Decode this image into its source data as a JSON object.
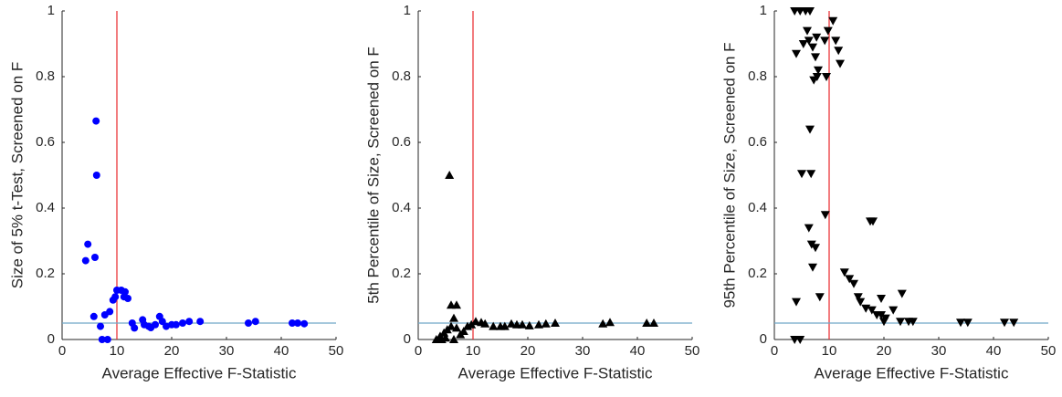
{
  "chart_data": [
    {
      "type": "scatter",
      "marker": "circle",
      "color": "#0000ff",
      "xlabel": "Average Effective F-Statistic",
      "ylabel": "Size of 5% t-Test, Screened on F",
      "xlim": [
        0,
        50
      ],
      "ylim": [
        0,
        1
      ],
      "xticks": [
        0,
        10,
        20,
        30,
        40,
        50
      ],
      "yticks": [
        0,
        0.2,
        0.4,
        0.6,
        0.8,
        1
      ],
      "reference_lines": [
        {
          "axis": "x",
          "value": 10,
          "color": "#e8262a"
        },
        {
          "axis": "y",
          "value": 0.05,
          "color": "#6fa8c8"
        }
      ],
      "x": [
        6.2,
        6.3,
        4.7,
        4.3,
        6,
        5.8,
        7,
        7.3,
        8.3,
        7.8,
        8.7,
        9.3,
        9.7,
        10,
        10.8,
        11.5,
        12,
        11.3,
        12.8,
        13.2,
        14.7,
        15,
        15.8,
        16.2,
        17,
        17.8,
        18.3,
        19,
        20,
        20.8,
        22,
        23.2,
        25.2,
        34,
        35.3,
        42,
        43,
        44.2
      ],
      "values": [
        0.665,
        0.5,
        0.29,
        0.24,
        0.25,
        0.07,
        0.04,
        0,
        0,
        0.075,
        0.085,
        0.12,
        0.13,
        0.15,
        0.15,
        0.145,
        0.125,
        0.13,
        0.05,
        0.035,
        0.06,
        0.045,
        0.04,
        0.036,
        0.045,
        0.07,
        0.055,
        0.04,
        0.045,
        0.045,
        0.05,
        0.055,
        0.055,
        0.05,
        0.055,
        0.05,
        0.05,
        0.048
      ]
    },
    {
      "type": "scatter",
      "marker": "triangle-up",
      "color": "#000000",
      "xlabel": "Average Effective F-Statistic",
      "ylabel": "5th Percentile of Size, Screened on F",
      "xlim": [
        0,
        50
      ],
      "ylim": [
        0,
        1
      ],
      "xticks": [
        0,
        10,
        20,
        30,
        40,
        50
      ],
      "yticks": [
        0,
        0.2,
        0.4,
        0.6,
        0.8,
        1
      ],
      "reference_lines": [
        {
          "axis": "x",
          "value": 10,
          "color": "#e8262a"
        },
        {
          "axis": "y",
          "value": 0.05,
          "color": "#6fa8c8"
        }
      ],
      "x": [
        5.7,
        6,
        7,
        3.3,
        4,
        4.7,
        5.3,
        6,
        6.5,
        7,
        7.7,
        8.3,
        9,
        9.7,
        10.5,
        11.5,
        12.2,
        13.7,
        15,
        15.8,
        17,
        18,
        19,
        20.3,
        22,
        23.3,
        25,
        33.7,
        35,
        41.7,
        43,
        4.3,
        5,
        6.5
      ],
      "values": [
        0.5,
        0.105,
        0.105,
        0,
        0.01,
        0.02,
        0.03,
        0.04,
        0.065,
        0.035,
        0.015,
        0.025,
        0.04,
        0.045,
        0.055,
        0.052,
        0.048,
        0.04,
        0.04,
        0.04,
        0.048,
        0.045,
        0.045,
        0.042,
        0.045,
        0.048,
        0.05,
        0.048,
        0.052,
        0.05,
        0.05,
        0,
        0.005,
        0
      ]
    },
    {
      "type": "scatter",
      "marker": "triangle-down",
      "color": "#000000",
      "xlabel": "Average Effective F-Statistic",
      "ylabel": "95th Percentile of Size, Screened on F",
      "xlim": [
        0,
        50
      ],
      "ylim": [
        0,
        1
      ],
      "xticks": [
        0,
        10,
        20,
        30,
        40,
        50
      ],
      "yticks": [
        0,
        0.2,
        0.4,
        0.6,
        0.8,
        1
      ],
      "reference_lines": [
        {
          "axis": "x",
          "value": 10,
          "color": "#e8262a"
        },
        {
          "axis": "y",
          "value": 0.05,
          "color": "#6fa8c8"
        }
      ],
      "x": [
        3.7,
        4.7,
        4,
        3.7,
        4.7,
        5.7,
        6.5,
        4,
        5.3,
        6.3,
        6,
        7,
        7.5,
        7.8,
        7.2,
        8,
        7.7,
        9.2,
        9.8,
        10.7,
        11.2,
        11.7,
        12,
        9.5,
        6.5,
        5,
        6.7,
        6.3,
        6.8,
        7,
        8.3,
        7.5,
        9.3,
        12.8,
        13.7,
        14.5,
        15.3,
        15.7,
        16.7,
        17.5,
        18,
        17.8,
        18.7,
        19.5,
        20,
        20.3,
        19.5,
        21.7,
        23.3,
        24.5,
        25.3,
        23,
        34,
        35.3,
        42,
        43.7
      ],
      "values": [
        0,
        0,
        0.115,
        1,
        1,
        1,
        1,
        0.87,
        0.9,
        0.91,
        0.94,
        0.89,
        0.86,
        0.8,
        0.79,
        0.82,
        0.92,
        0.91,
        0.94,
        0.97,
        0.91,
        0.88,
        0.84,
        0.8,
        0.64,
        0.505,
        0.505,
        0.34,
        0.29,
        0.22,
        0.13,
        0.28,
        0.38,
        0.205,
        0.185,
        0.17,
        0.13,
        0.115,
        0.095,
        0.36,
        0.36,
        0.09,
        0.075,
        0.075,
        0.055,
        0.065,
        0.125,
        0.09,
        0.14,
        0.055,
        0.055,
        0.055,
        0.052,
        0.052,
        0.052,
        0.052
      ]
    }
  ]
}
